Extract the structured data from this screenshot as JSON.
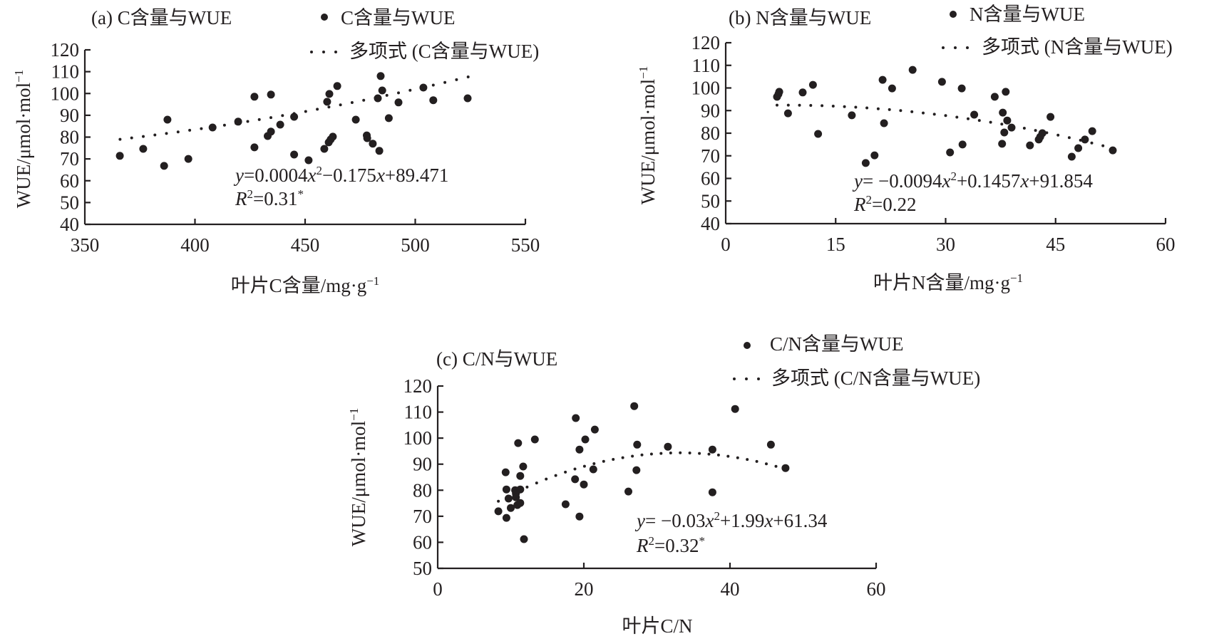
{
  "chart_data": [
    {
      "id": "a",
      "type": "scatter",
      "title": "(a) C含量与WUE",
      "xlabel": "叶片C含量/mg·g",
      "xlabel_sup": "−1",
      "ylabel": "WUE/μmol·mol",
      "ylabel_sup": "−1",
      "xlim": [
        350,
        550
      ],
      "ylim": [
        40,
        120
      ],
      "xticks": [
        350,
        400,
        450,
        500,
        550
      ],
      "yticks": [
        40,
        50,
        60,
        70,
        80,
        90,
        100,
        110,
        120
      ],
      "grid": false,
      "legend": {
        "placement": "top-right",
        "scatter_label": "C含量与WUE",
        "trend_label": "多项式 (C含量与WUE)"
      },
      "equation": {
        "prefix": "y",
        "text": "=0.0004x²−0.175x+89.471",
        "parts": [
          "=0.0004",
          "x",
          "2",
          "−0.175",
          "x",
          "+89.471"
        ],
        "r2_label": "R",
        "r2_text": "=0.31",
        "r2_mark": "*"
      },
      "trend": {
        "type": "polynomial",
        "coef": [
          0.0004,
          -0.175,
          89.471
        ],
        "x_range": [
          366,
          524
        ]
      },
      "points": [
        [
          365.9,
          71.4
        ],
        [
          376.5,
          74.6
        ],
        [
          386.0,
          66.8
        ],
        [
          387.5,
          88.0
        ],
        [
          397.0,
          70.0
        ],
        [
          408.0,
          84.4
        ],
        [
          419.6,
          87.1
        ],
        [
          427.0,
          75.3
        ],
        [
          427.0,
          98.5
        ],
        [
          434.5,
          99.5
        ],
        [
          433.0,
          80.5
        ],
        [
          434.5,
          82.5
        ],
        [
          438.7,
          85.7
        ],
        [
          445.0,
          89.3
        ],
        [
          445.0,
          72.0
        ],
        [
          451.6,
          69.4
        ],
        [
          464.6,
          103.4
        ],
        [
          461.0,
          99.8
        ],
        [
          460.0,
          96.2
        ],
        [
          458.7,
          74.6
        ],
        [
          460.7,
          77.6
        ],
        [
          461.6,
          78.9
        ],
        [
          462.6,
          80.2
        ],
        [
          473.0,
          88.0
        ],
        [
          484.3,
          108.0
        ],
        [
          485.0,
          101.4
        ],
        [
          483.0,
          97.8
        ],
        [
          478.0,
          80.8
        ],
        [
          478.2,
          79.5
        ],
        [
          480.7,
          77.0
        ],
        [
          483.7,
          73.7
        ],
        [
          488.0,
          88.7
        ],
        [
          492.4,
          95.9
        ],
        [
          503.7,
          102.7
        ],
        [
          508.2,
          96.9
        ],
        [
          523.8,
          97.8
        ]
      ]
    },
    {
      "id": "b",
      "type": "scatter",
      "title": "(b) N含量与WUE",
      "xlabel": "叶片N含量/mg·g",
      "xlabel_sup": "−1",
      "ylabel": "WUE/μmol·mol",
      "ylabel_sup": "−1",
      "xlim": [
        0,
        60
      ],
      "ylim": [
        40,
        120
      ],
      "xticks": [
        0,
        15,
        30,
        45,
        60
      ],
      "yticks": [
        40,
        50,
        60,
        70,
        80,
        90,
        100,
        110,
        120
      ],
      "grid": false,
      "legend": {
        "placement": "top-right",
        "scatter_label": "N含量与WUE",
        "trend_label": "多项式 (N含量与WUE)"
      },
      "equation": {
        "prefix": "y",
        "text": "= −0.0094x²+0.1457x+91.854",
        "parts": [
          "= −0.0094",
          "x",
          "2",
          "+0.1457",
          "x",
          "+91.854"
        ],
        "r2_label": "R",
        "r2_text": "=0.22",
        "r2_mark": ""
      },
      "trend": {
        "type": "polynomial",
        "coef": [
          -0.0094,
          0.1457,
          91.854
        ],
        "x_range": [
          7,
          53
        ]
      },
      "points": [
        [
          7.0,
          96.1
        ],
        [
          7.2,
          97.3
        ],
        [
          7.3,
          98.3
        ],
        [
          8.5,
          88.8
        ],
        [
          10.5,
          98.0
        ],
        [
          11.9,
          101.4
        ],
        [
          12.6,
          79.7
        ],
        [
          17.2,
          87.9
        ],
        [
          19.1,
          66.8
        ],
        [
          20.3,
          70.2
        ],
        [
          21.4,
          103.6
        ],
        [
          21.6,
          84.4
        ],
        [
          22.7,
          99.8
        ],
        [
          25.5,
          108.0
        ],
        [
          29.5,
          102.7
        ],
        [
          30.6,
          71.5
        ],
        [
          32.2,
          99.8
        ],
        [
          32.3,
          75.0
        ],
        [
          33.9,
          88.2
        ],
        [
          36.7,
          96.1
        ],
        [
          38.2,
          98.3
        ],
        [
          37.8,
          89.1
        ],
        [
          38.4,
          85.6
        ],
        [
          39.0,
          82.5
        ],
        [
          38.0,
          80.3
        ],
        [
          37.7,
          75.3
        ],
        [
          41.5,
          74.6
        ],
        [
          42.7,
          77.2
        ],
        [
          42.9,
          78.4
        ],
        [
          43.2,
          80.0
        ],
        [
          44.3,
          87.2
        ],
        [
          47.2,
          69.6
        ],
        [
          48.1,
          73.4
        ],
        [
          49.0,
          77.2
        ],
        [
          50.0,
          80.9
        ],
        [
          52.8,
          72.4
        ]
      ]
    },
    {
      "id": "c",
      "type": "scatter",
      "title": "(c) C/N与WUE",
      "xlabel": "叶片C/N",
      "xlabel_sup": "",
      "ylabel": "WUE/μmol·mol",
      "ylabel_sup": "−1",
      "xlim": [
        0,
        60
      ],
      "ylim": [
        50,
        120
      ],
      "xticks": [
        0,
        20,
        40,
        60
      ],
      "yticks": [
        50,
        60,
        70,
        80,
        90,
        100,
        110,
        120
      ],
      "grid": false,
      "legend": {
        "placement": "top-right",
        "scatter_label": "C/N含量与WUE",
        "trend_label": "多项式 (C/N含量与WUE)"
      },
      "equation": {
        "prefix": "y",
        "text": "= −0.03x²+1.99x+61.34",
        "parts": [
          "= −0.03",
          "x",
          "2",
          "+1.99",
          "x",
          "+61.34"
        ],
        "r2_label": "R",
        "r2_text": "=0.32",
        "r2_mark": "*"
      },
      "trend": {
        "type": "polynomial",
        "coef": [
          -0.03,
          1.99,
          61.34
        ],
        "x_range": [
          8.3,
          47.6
        ]
      },
      "points": [
        [
          8.3,
          71.9
        ],
        [
          9.4,
          69.4
        ],
        [
          9.7,
          76.8
        ],
        [
          10.0,
          73.2
        ],
        [
          9.4,
          80.3
        ],
        [
          9.3,
          86.9
        ],
        [
          10.6,
          80.0
        ],
        [
          10.7,
          78.7
        ],
        [
          10.7,
          77.3
        ],
        [
          10.9,
          74.3
        ],
        [
          11.3,
          75.1
        ],
        [
          11.3,
          80.3
        ],
        [
          11.3,
          85.5
        ],
        [
          11.7,
          89.1
        ],
        [
          11.0,
          98.1
        ],
        [
          11.8,
          61.2
        ],
        [
          13.3,
          99.5
        ],
        [
          17.5,
          74.6
        ],
        [
          18.8,
          84.2
        ],
        [
          18.9,
          107.7
        ],
        [
          19.4,
          95.6
        ],
        [
          19.4,
          69.9
        ],
        [
          20.0,
          82.2
        ],
        [
          20.2,
          99.5
        ],
        [
          21.3,
          88.0
        ],
        [
          21.5,
          103.3
        ],
        [
          26.1,
          79.5
        ],
        [
          26.9,
          112.3
        ],
        [
          27.3,
          97.5
        ],
        [
          27.2,
          87.7
        ],
        [
          31.5,
          96.7
        ],
        [
          37.6,
          95.6
        ],
        [
          37.6,
          79.2
        ],
        [
          40.7,
          111.2
        ],
        [
          45.6,
          97.5
        ],
        [
          47.6,
          88.5
        ]
      ]
    }
  ]
}
